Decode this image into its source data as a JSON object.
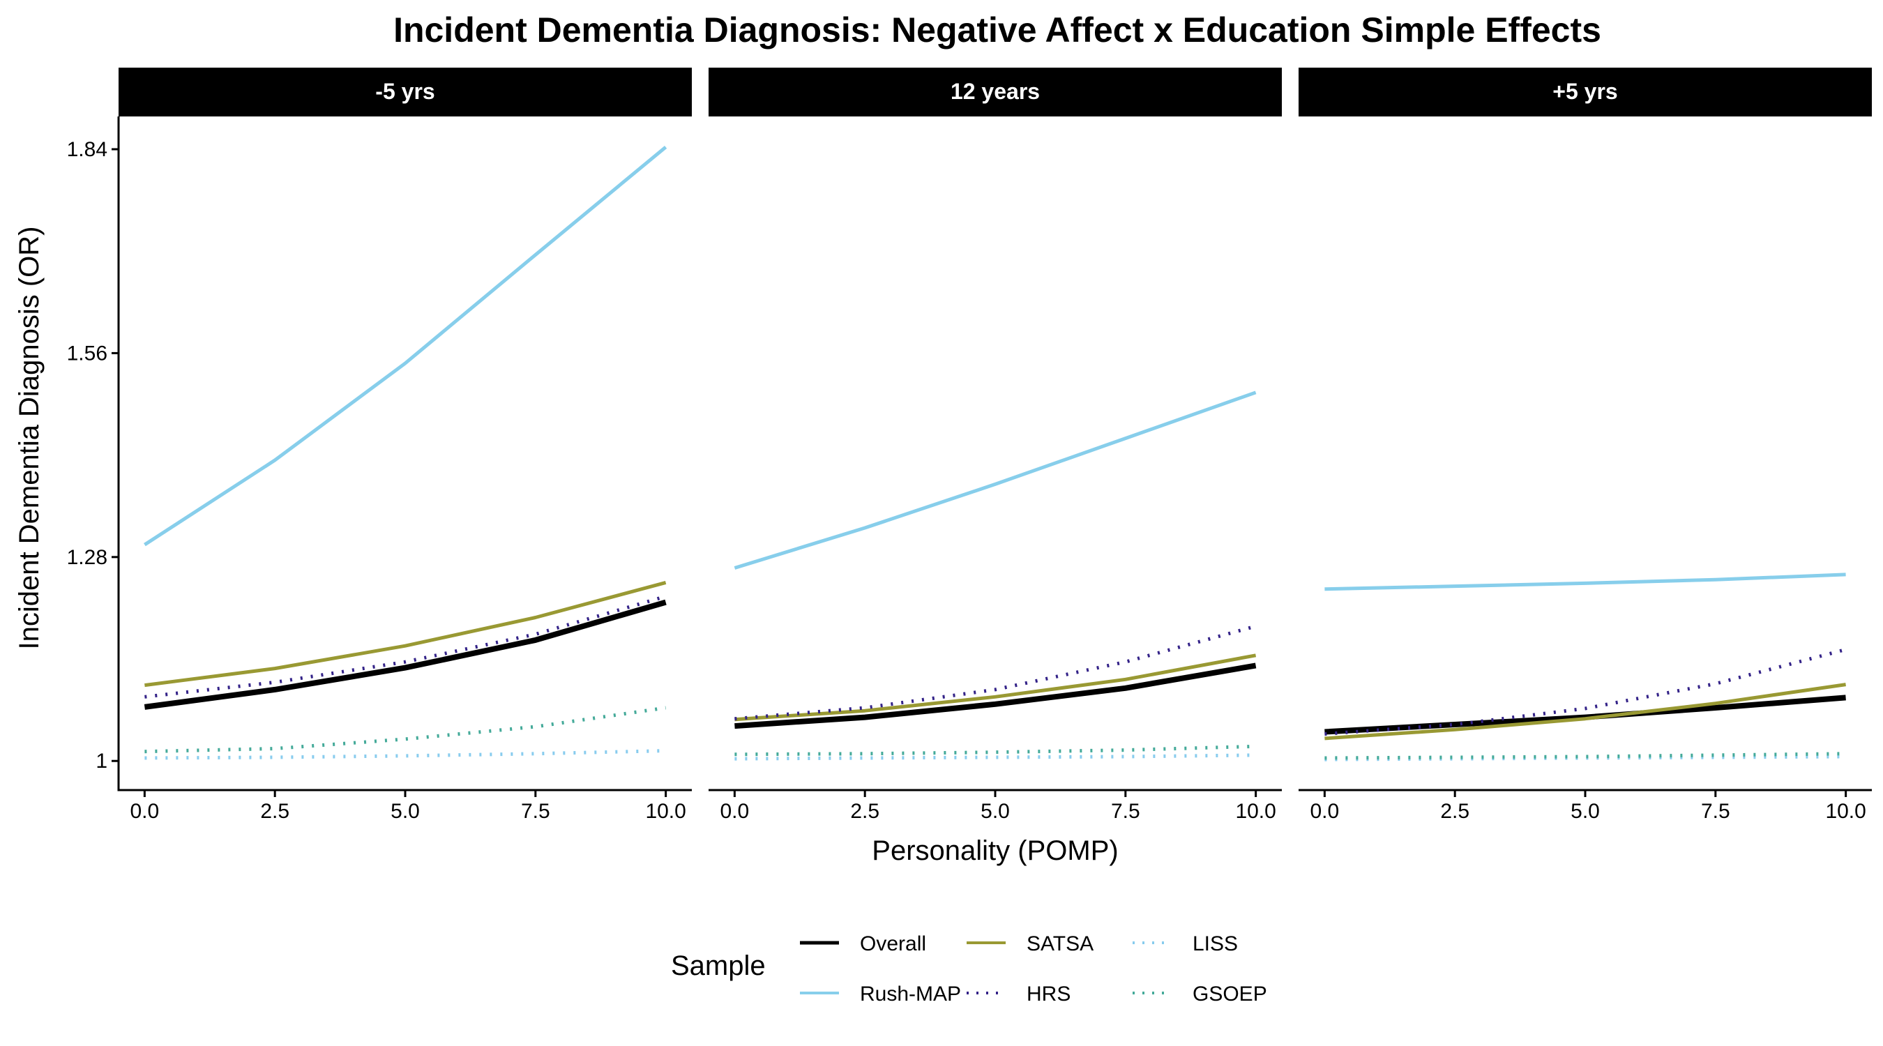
{
  "chart_data": {
    "type": "line",
    "title": "Incident Dementia Diagnosis: Negative Affect x Education Simple Effects",
    "xlabel": "Personality (POMP)",
    "ylabel": "Incident Dementia Diagnosis (OR)",
    "xlim": [
      -0.5,
      10.5
    ],
    "ylim": [
      0.96,
      1.885
    ],
    "x_ticks": [
      "0.0",
      "2.5",
      "5.0",
      "7.5",
      "10.0"
    ],
    "y_ticks": [
      "1",
      "1.28",
      "1.56",
      "1.84"
    ],
    "legend": {
      "title": "Sample",
      "position": "bottom"
    },
    "series_styles": [
      {
        "name": "Overall",
        "color": "#000000",
        "dash": "solid",
        "width": 8
      },
      {
        "name": "Rush-MAP",
        "color": "#87CEEB",
        "dash": "solid",
        "width": 5
      },
      {
        "name": "SATSA",
        "color": "#999933",
        "dash": "solid",
        "width": 5
      },
      {
        "name": "HRS",
        "color": "#332288",
        "dash": "dotted",
        "width": 5
      },
      {
        "name": "LISS",
        "color": "#88CCEE",
        "dash": "dotted",
        "width": 5
      },
      {
        "name": "GSOEP",
        "color": "#44AA99",
        "dash": "dotted",
        "width": 5
      }
    ],
    "x": [
      0,
      2.5,
      5,
      7.5,
      10
    ],
    "panels": [
      {
        "label": "-5 yrs",
        "series": [
          {
            "name": "Overall",
            "values": [
              1.074,
              1.098,
              1.128,
              1.166,
              1.218
            ]
          },
          {
            "name": "Rush-MAP",
            "values": [
              1.297,
              1.413,
              1.546,
              1.695,
              1.843
            ]
          },
          {
            "name": "SATSA",
            "values": [
              1.104,
              1.127,
              1.158,
              1.197,
              1.245
            ]
          },
          {
            "name": "HRS",
            "values": [
              1.088,
              1.108,
              1.136,
              1.174,
              1.226
            ]
          },
          {
            "name": "LISS",
            "values": [
              1.004,
              1.005,
              1.007,
              1.01,
              1.014
            ]
          },
          {
            "name": "GSOEP",
            "values": [
              1.013,
              1.017,
              1.03,
              1.047,
              1.073
            ]
          }
        ]
      },
      {
        "label": "12 years",
        "series": [
          {
            "name": "Overall",
            "values": [
              1.048,
              1.06,
              1.078,
              1.1,
              1.131
            ]
          },
          {
            "name": "Rush-MAP",
            "values": [
              1.265,
              1.32,
              1.38,
              1.443,
              1.506
            ]
          },
          {
            "name": "SATSA",
            "values": [
              1.057,
              1.069,
              1.088,
              1.112,
              1.145
            ]
          },
          {
            "name": "HRS",
            "values": [
              1.058,
              1.073,
              1.098,
              1.136,
              1.185
            ]
          },
          {
            "name": "LISS",
            "values": [
              1.003,
              1.004,
              1.005,
              1.006,
              1.008
            ]
          },
          {
            "name": "GSOEP",
            "values": [
              1.009,
              1.01,
              1.012,
              1.015,
              1.02
            ]
          }
        ]
      },
      {
        "label": "+5 yrs",
        "series": [
          {
            "name": "Overall",
            "values": [
              1.04,
              1.05,
              1.06,
              1.073,
              1.087
            ]
          },
          {
            "name": "Rush-MAP",
            "values": [
              1.236,
              1.24,
              1.244,
              1.249,
              1.256
            ]
          },
          {
            "name": "SATSA",
            "values": [
              1.031,
              1.043,
              1.058,
              1.079,
              1.105
            ]
          },
          {
            "name": "HRS",
            "values": [
              1.037,
              1.05,
              1.072,
              1.106,
              1.153
            ]
          },
          {
            "name": "LISS",
            "values": [
              1.002,
              1.003,
              1.004,
              1.005,
              1.006
            ]
          },
          {
            "name": "GSOEP",
            "values": [
              1.004,
              1.005,
              1.006,
              1.008,
              1.01
            ]
          }
        ]
      }
    ]
  }
}
